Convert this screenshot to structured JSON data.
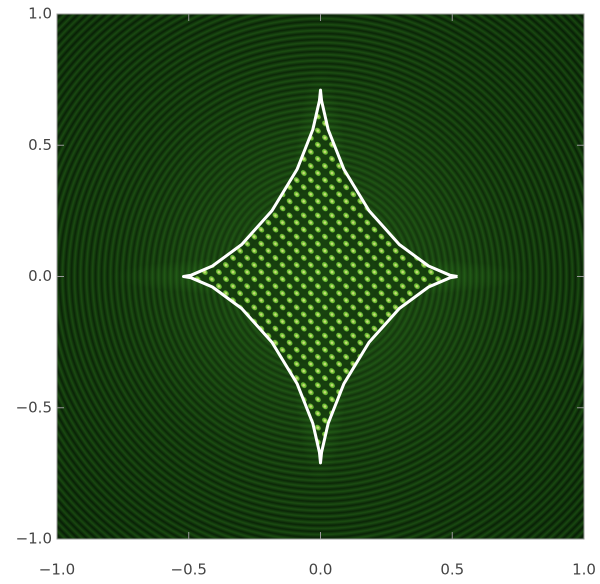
{
  "chart_data": {
    "type": "line",
    "x": [
      0.52,
      0.491,
      0.41,
      0.299,
      0.184,
      0.089,
      0.029,
      0.004,
      0,
      -0.004,
      -0.029,
      -0.089,
      -0.184,
      -0.299,
      -0.41,
      -0.491,
      -0.52,
      -0.491,
      -0.41,
      -0.299,
      -0.184,
      -0.089,
      -0.029,
      -0.004,
      0,
      0.004,
      0.029,
      0.089,
      0.184,
      0.299,
      0.41,
      0.491,
      0.52
    ],
    "values": [
      0,
      0.005,
      0.04,
      0.122,
      0.251,
      0.408,
      0.56,
      0.67,
      0.71,
      0.67,
      0.56,
      0.408,
      0.251,
      0.122,
      0.04,
      0.005,
      0,
      -0.005,
      -0.04,
      -0.122,
      -0.251,
      -0.408,
      -0.56,
      -0.67,
      -0.71,
      -0.67,
      -0.56,
      -0.408,
      -0.251,
      -0.122,
      -0.04,
      -0.005,
      0
    ],
    "color": "#ffffff",
    "xlim": [
      -1,
      1
    ],
    "ylim": [
      -1,
      1
    ],
    "xticks": [
      {
        "value": -1,
        "label": "−1.0"
      },
      {
        "value": -0.5,
        "label": "−0.5"
      },
      {
        "value": 0,
        "label": "0.0"
      },
      {
        "value": 0.5,
        "label": "0.5"
      },
      {
        "value": 1,
        "label": "1.0"
      }
    ],
    "yticks": [
      {
        "value": -1,
        "label": "−1.0"
      },
      {
        "value": -0.5,
        "label": "−0.5"
      },
      {
        "value": 0,
        "label": "0.0"
      },
      {
        "value": 0.5,
        "label": "0.5"
      },
      {
        "value": 1,
        "label": "1.0"
      }
    ]
  }
}
